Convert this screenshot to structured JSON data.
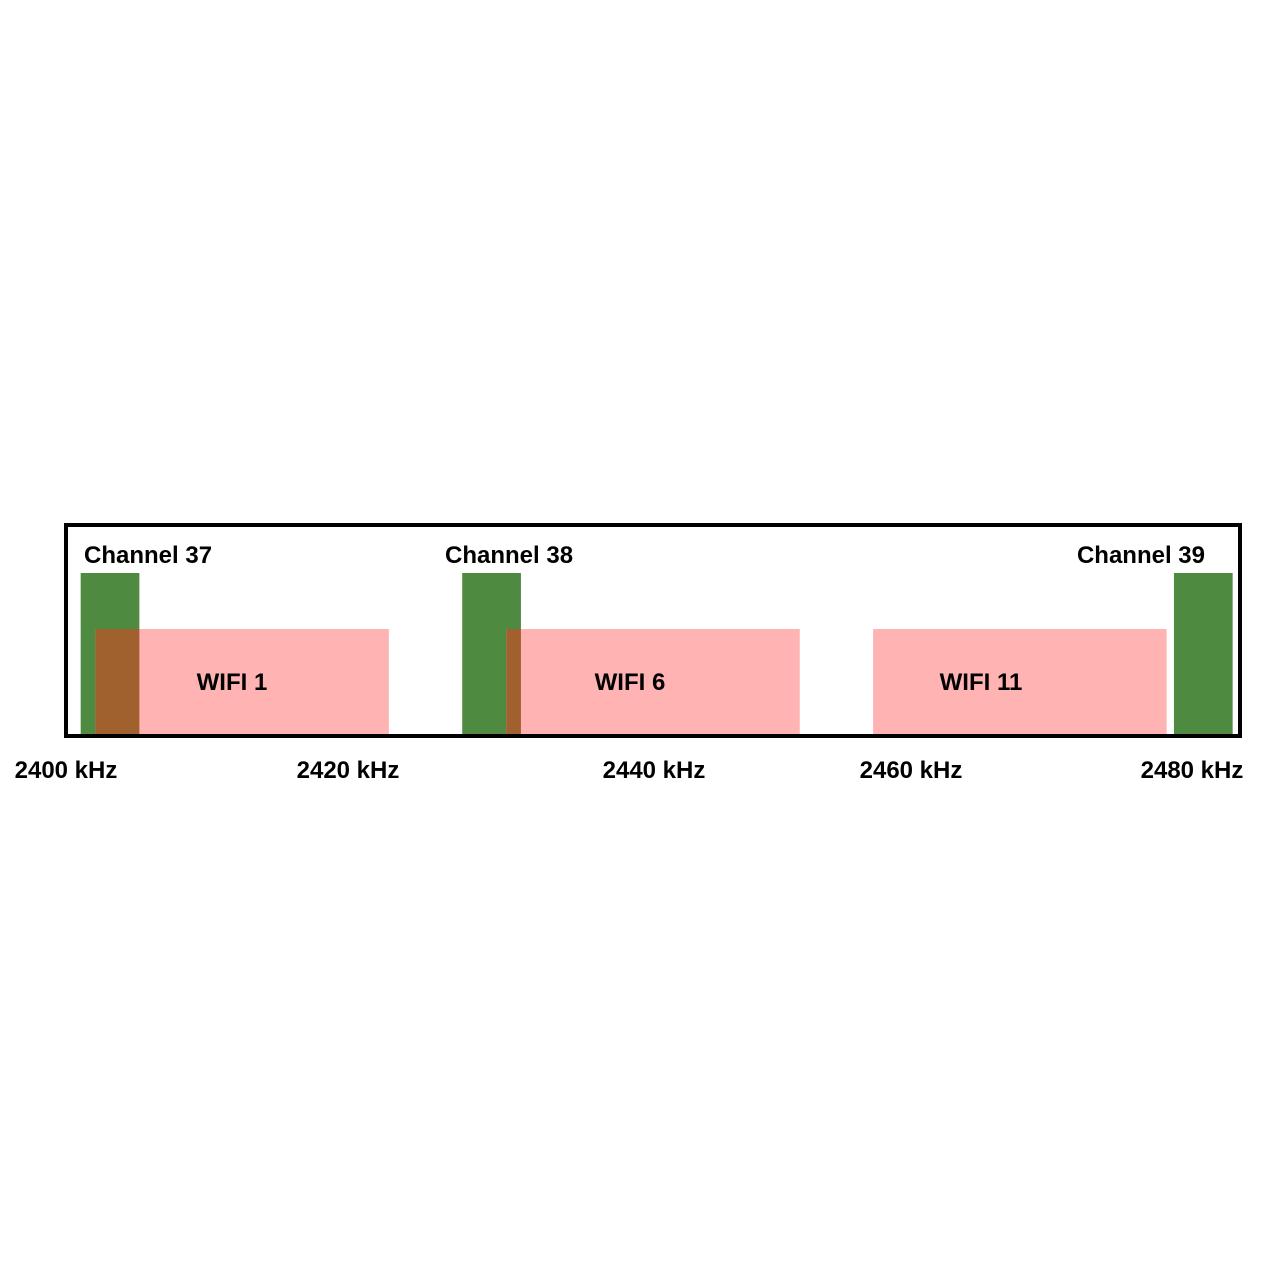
{
  "colors": {
    "ble_channel": "#4e8a40",
    "wifi_channel": "#ffb3b3",
    "overlap": "#a0612f",
    "frame": "#000000",
    "background": "#ffffff"
  },
  "ble_channels": [
    {
      "label": "Channel 37",
      "start_khz": 2401,
      "end_khz": 2405
    },
    {
      "label": "Channel 38",
      "start_khz": 2427,
      "end_khz": 2431
    },
    {
      "label": "Channel 39",
      "start_khz": 2475.5,
      "end_khz": 2479.5
    }
  ],
  "wifi_channels": [
    {
      "label": "WIFI 1",
      "start_khz": 2402,
      "end_khz": 2422
    },
    {
      "label": "WIFI 6",
      "start_khz": 2430,
      "end_khz": 2450
    },
    {
      "label": "WIFI 11",
      "start_khz": 2455,
      "end_khz": 2475
    }
  ],
  "frequency_ticks": [
    "2400 kHz",
    "2420 kHz",
    "2440 kHz",
    "2460 kHz",
    "2480 kHz"
  ],
  "frequency_tick_values": [
    2400,
    2420,
    2440,
    2460,
    2480
  ]
}
